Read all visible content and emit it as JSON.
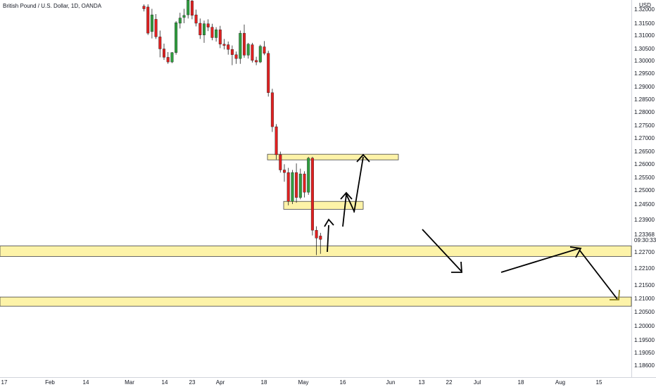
{
  "header": {
    "title": "British Pound / U.S. Dollar, 1D, OANDA",
    "currency": "USD"
  },
  "price_axis": {
    "labels": [
      "1.32000",
      "1.31500",
      "1.31000",
      "1.30500",
      "1.30000",
      "1.29500",
      "1.29000",
      "1.28500",
      "1.28000",
      "1.27500",
      "1.27000",
      "1.26500",
      "1.26000",
      "1.25500",
      "1.25000",
      "1.24500",
      "1.23900",
      "1.22700",
      "1.22100",
      "1.21500",
      "1.21000",
      "1.20500",
      "1.20000",
      "1.19500",
      "1.19050",
      "1.18600"
    ],
    "current_price": "1.23368",
    "countdown": "09:30:33"
  },
  "time_axis": {
    "labels": [
      "17",
      "Feb",
      "14",
      "Mar",
      "14",
      "23",
      "Apr",
      "18",
      "May",
      "16",
      "Jun",
      "13",
      "22",
      "Jul",
      "18",
      "Aug",
      "15"
    ]
  },
  "colors": {
    "bullish": "#2e9e3e",
    "bearish": "#e02020",
    "zone_fill": "#fdf3a8",
    "zone_stroke": "#444444",
    "arrow": "#000000",
    "arrow_end": "#8a7f1a",
    "text": "#131722"
  },
  "chart_data": {
    "type": "candlestick",
    "symbol": "British Pound / U.S. Dollar",
    "timeframe": "1D",
    "source": "OANDA",
    "last_price": 1.23368,
    "ylim": [
      1.184,
      1.3225
    ],
    "candles": [
      {
        "o": 1.3215,
        "h": 1.3222,
        "l": 1.3195,
        "c": 1.3205
      },
      {
        "o": 1.3212,
        "h": 1.3222,
        "l": 1.3105,
        "c": 1.3112
      },
      {
        "o": 1.3118,
        "h": 1.3205,
        "l": 1.3092,
        "c": 1.3182
      },
      {
        "o": 1.3165,
        "h": 1.3185,
        "l": 1.309,
        "c": 1.3098
      },
      {
        "o": 1.3098,
        "h": 1.3122,
        "l": 1.302,
        "c": 1.3052
      },
      {
        "o": 1.3052,
        "h": 1.3072,
        "l": 1.301,
        "c": 1.302
      },
      {
        "o": 1.302,
        "h": 1.304,
        "l": 1.2995,
        "c": 1.3002
      },
      {
        "o": 1.3002,
        "h": 1.304,
        "l": 1.2998,
        "c": 1.3038
      },
      {
        "o": 1.3038,
        "h": 1.3158,
        "l": 1.303,
        "c": 1.3152
      },
      {
        "o": 1.315,
        "h": 1.319,
        "l": 1.313,
        "c": 1.317
      },
      {
        "o": 1.3172,
        "h": 1.3205,
        "l": 1.315,
        "c": 1.318
      },
      {
        "o": 1.3182,
        "h": 1.324,
        "l": 1.3168,
        "c": 1.3238
      },
      {
        "o": 1.3235,
        "h": 1.3248,
        "l": 1.3165,
        "c": 1.318
      },
      {
        "o": 1.3182,
        "h": 1.3202,
        "l": 1.3138,
        "c": 1.315
      },
      {
        "o": 1.315,
        "h": 1.3168,
        "l": 1.309,
        "c": 1.3105
      },
      {
        "o": 1.3105,
        "h": 1.316,
        "l": 1.3075,
        "c": 1.3148
      },
      {
        "o": 1.3148,
        "h": 1.3165,
        "l": 1.312,
        "c": 1.3135
      },
      {
        "o": 1.3135,
        "h": 1.3148,
        "l": 1.3085,
        "c": 1.3095
      },
      {
        "o": 1.3095,
        "h": 1.3135,
        "l": 1.308,
        "c": 1.3125
      },
      {
        "o": 1.3125,
        "h": 1.314,
        "l": 1.3055,
        "c": 1.307
      },
      {
        "o": 1.307,
        "h": 1.309,
        "l": 1.305,
        "c": 1.3065
      },
      {
        "o": 1.3068,
        "h": 1.308,
        "l": 1.303,
        "c": 1.305
      },
      {
        "o": 1.305,
        "h": 1.3065,
        "l": 1.299,
        "c": 1.303
      },
      {
        "o": 1.303,
        "h": 1.3042,
        "l": 1.2995,
        "c": 1.3015
      },
      {
        "o": 1.3015,
        "h": 1.3122,
        "l": 1.2995,
        "c": 1.3112
      },
      {
        "o": 1.3112,
        "h": 1.3145,
        "l": 1.3018,
        "c": 1.3028
      },
      {
        "o": 1.3028,
        "h": 1.3075,
        "l": 1.3015,
        "c": 1.307
      },
      {
        "o": 1.3068,
        "h": 1.3075,
        "l": 1.3,
        "c": 1.3008
      },
      {
        "o": 1.3008,
        "h": 1.3022,
        "l": 1.299,
        "c": 1.3002
      },
      {
        "o": 1.3002,
        "h": 1.3068,
        "l": 1.2998,
        "c": 1.3062
      },
      {
        "o": 1.306,
        "h": 1.3082,
        "l": 1.3028,
        "c": 1.3035
      },
      {
        "o": 1.3035,
        "h": 1.3045,
        "l": 1.287,
        "c": 1.2885
      },
      {
        "o": 1.2885,
        "h": 1.29,
        "l": 1.2735,
        "c": 1.2755
      },
      {
        "o": 1.2755,
        "h": 1.2765,
        "l": 1.263,
        "c": 1.2648
      },
      {
        "o": 1.2648,
        "h": 1.266,
        "l": 1.258,
        "c": 1.259
      },
      {
        "o": 1.259,
        "h": 1.2612,
        "l": 1.2545,
        "c": 1.258
      },
      {
        "o": 1.258,
        "h": 1.2598,
        "l": 1.2455,
        "c": 1.247
      },
      {
        "o": 1.247,
        "h": 1.259,
        "l": 1.246,
        "c": 1.258
      },
      {
        "o": 1.258,
        "h": 1.2615,
        "l": 1.2465,
        "c": 1.2485
      },
      {
        "o": 1.2485,
        "h": 1.2595,
        "l": 1.2478,
        "c": 1.2575
      },
      {
        "o": 1.2575,
        "h": 1.2585,
        "l": 1.2485,
        "c": 1.2505
      },
      {
        "o": 1.2505,
        "h": 1.264,
        "l": 1.2495,
        "c": 1.2635
      },
      {
        "o": 1.2635,
        "h": 1.264,
        "l": 1.234,
        "c": 1.236
      },
      {
        "o": 1.236,
        "h": 1.2375,
        "l": 1.2265,
        "c": 1.233
      },
      {
        "o": 1.2338,
        "h": 1.235,
        "l": 1.227,
        "c": 1.2325
      }
    ],
    "zones": [
      {
        "top": 1.265,
        "bottom": 1.2635,
        "span": "short"
      },
      {
        "top": 1.247,
        "bottom": 1.244,
        "span": "short"
      },
      {
        "top": 1.23,
        "bottom": 1.226,
        "span": "full"
      },
      {
        "top": 1.2105,
        "bottom": 1.207,
        "span": "full"
      }
    ]
  }
}
